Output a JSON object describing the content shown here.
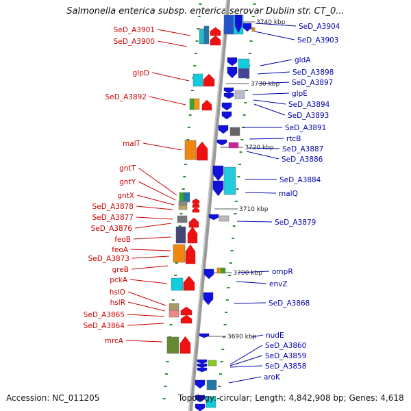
{
  "title": "Salmonella enterica subsp. enterica serovar Dublin str. CT_0...",
  "accession": "Accession: NC_011205",
  "topology": "Topology: circular; Length: 4,842,908 bp; Genes: 4,618",
  "colors": {
    "forward_gene": "#ee1111",
    "reverse_gene": "#1111dd",
    "left_label": "#cc0000",
    "right_label": "#0000aa",
    "backbone": "#999999",
    "tick": "#2a8a2a"
  },
  "scale_labels": [
    "3740 kbp",
    "3730 kbp",
    "3720 kbp",
    "3710 kbp",
    "3700 kbp",
    "3690 kbp"
  ],
  "left_labels": [
    "SeD_A3901",
    "SeD_A3900",
    "glpD",
    "SeD_A3892",
    "malT",
    "gntT",
    "gntY",
    "gntX",
    "SeD_A3878",
    "SeD_A3877",
    "SeD_A3876",
    "feoB",
    "feoA",
    "SeD_A3873",
    "greB",
    "pckA",
    "hslO",
    "hslR",
    "SeD_A3865",
    "SeD_A3864",
    "mrcA"
  ],
  "right_labels": [
    "SeD_A3904",
    "SeD_A3903",
    "gldA",
    "SeD_A3898",
    "SeD_A3897",
    "glpE",
    "SeD_A3894",
    "SeD_A3893",
    "SeD_A3891",
    "rtcB",
    "SeD_A3887",
    "SeD_A3886",
    "SeD_A3884",
    "malQ",
    "SeD_A3879",
    "ompR",
    "envZ",
    "SeD_A3868",
    "nudE",
    "SeD_A3860",
    "SeD_A3859",
    "SeD_A3858",
    "aroK"
  ]
}
